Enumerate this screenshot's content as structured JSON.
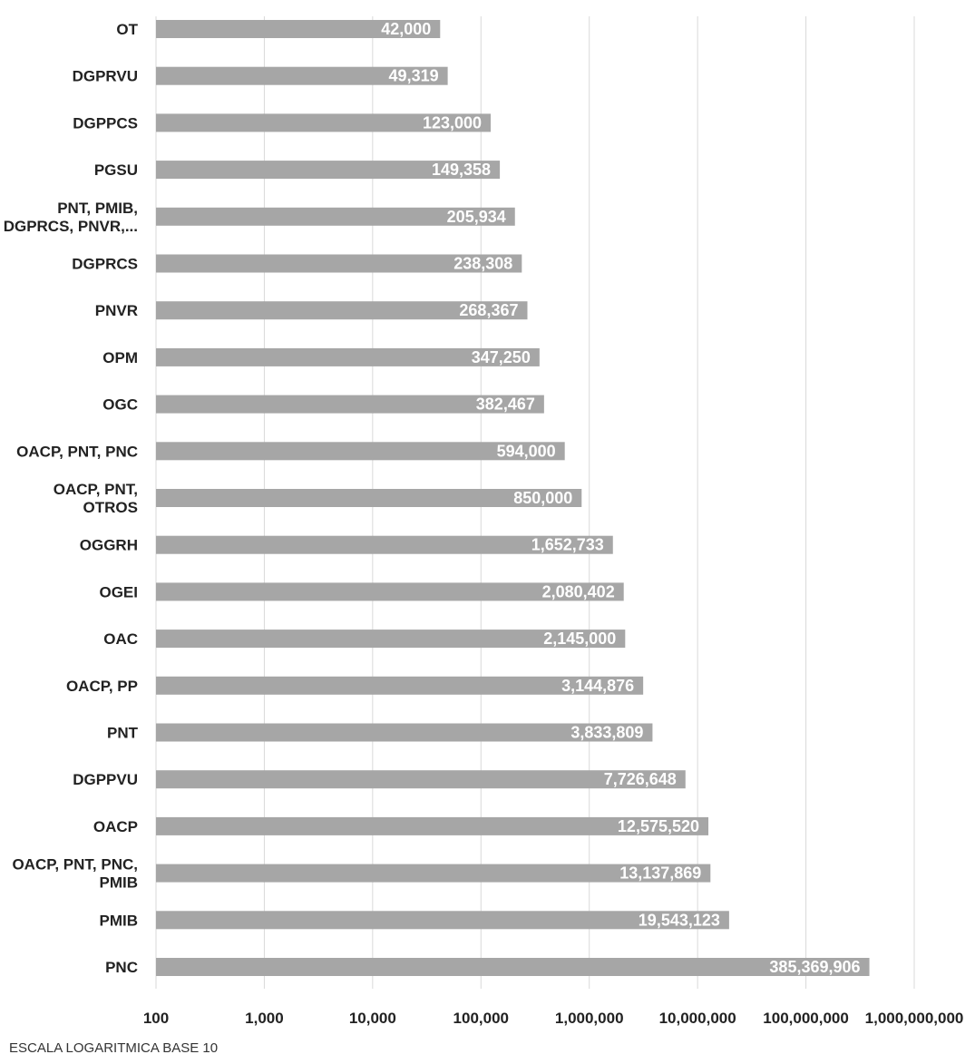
{
  "chart_data": {
    "type": "bar",
    "orientation": "horizontal",
    "scale": "log10",
    "xlim": [
      100,
      1000000000
    ],
    "grid": true,
    "bar_color": "#a6a6a6",
    "grid_color": "#d9d9d9",
    "categories": [
      [
        "OT"
      ],
      [
        "DGPRVU"
      ],
      [
        "DGPPCS"
      ],
      [
        "PGSU"
      ],
      [
        "PNT, PMIB,",
        "DGPRCS, PNVR,..."
      ],
      [
        "DGPRCS"
      ],
      [
        "PNVR"
      ],
      [
        "OPM"
      ],
      [
        "OGC"
      ],
      [
        "OACP, PNT, PNC"
      ],
      [
        "OACP, PNT,",
        "OTROS"
      ],
      [
        "OGGRH"
      ],
      [
        "OGEI"
      ],
      [
        "OAC"
      ],
      [
        "OACP, PP"
      ],
      [
        "PNT"
      ],
      [
        "DGPPVU"
      ],
      [
        "OACP"
      ],
      [
        "OACP, PNT, PNC,",
        "PMIB"
      ],
      [
        "PMIB"
      ],
      [
        "PNC"
      ]
    ],
    "values": [
      42000,
      49319,
      123000,
      149358,
      205934,
      238308,
      268367,
      347250,
      382467,
      594000,
      850000,
      1652733,
      2080402,
      2145000,
      3144876,
      3833809,
      7726648,
      12575520,
      13137869,
      19543123,
      385369906
    ],
    "data_labels": [
      "42,000",
      "49,319",
      "123,000",
      "149,358",
      "205,934",
      "238,308",
      "268,367",
      "347,250",
      "382,467",
      "594,000",
      "850,000",
      "1,652,733",
      "2,080,402",
      "2,145,000",
      "3,144,876",
      "3,833,809",
      "7,726,648",
      "12,575,520",
      "13,137,869",
      "19,543,123",
      "385,369,906"
    ],
    "ticks": [
      100,
      1000,
      10000,
      100000,
      1000000,
      10000000,
      100000000,
      1000000000
    ],
    "tick_labels": [
      "100",
      "1,000",
      "10,000",
      "100,000",
      "1,000,000",
      "10,000,000",
      "100,000,000",
      "1,000,000,000"
    ],
    "footnote": "ESCALA LOGARITMICA BASE 10"
  }
}
